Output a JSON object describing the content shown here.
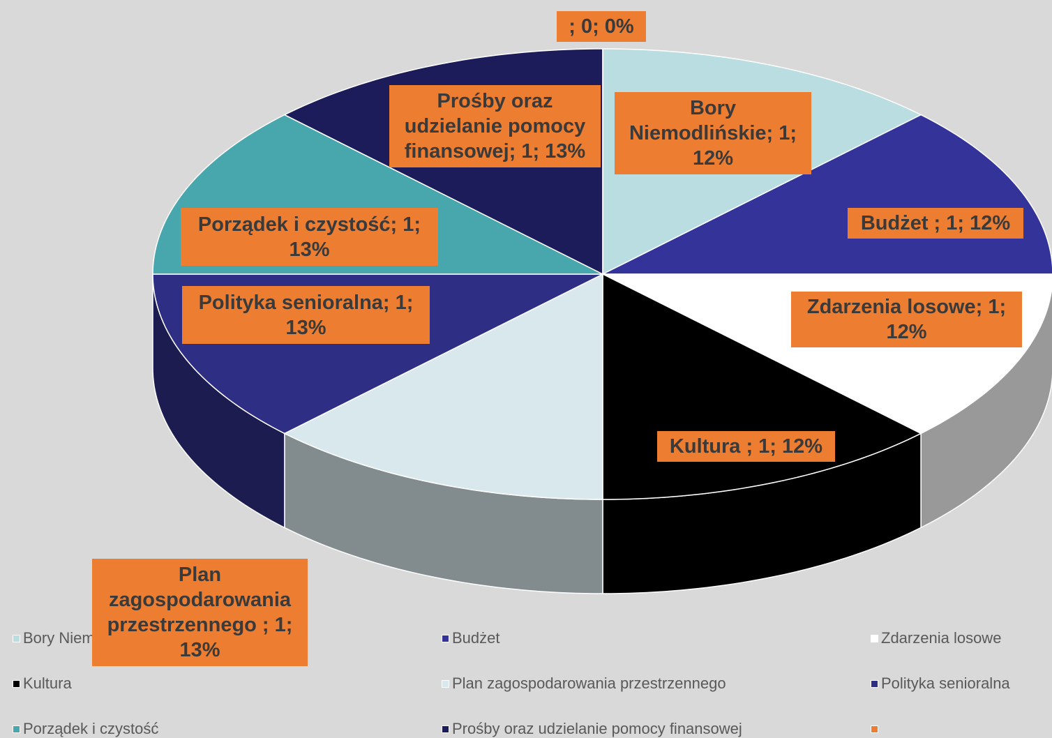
{
  "chart_data": {
    "type": "pie",
    "3d": true,
    "legend": "bottom",
    "categories": [
      "Bory Niemodlińskie",
      "Budżet",
      "Zdarzenia losowe",
      "Kultura",
      "Plan zagospodarowania przestrzennego",
      "Polityka senioralna",
      "Porządek i czystość",
      "Prośby oraz udzielanie pomocy finansowej",
      null
    ],
    "values": [
      1,
      1,
      1,
      1,
      1,
      1,
      1,
      1,
      0
    ],
    "value_labels": [
      "Bory Niemodlińskie; 1; 12%",
      "Budżet ; 1; 12%",
      "Zdarzenia losowe; 1; 12%",
      "Kultura ; 1; 12%",
      "Plan zagospodarowania przestrzennego ; 1; 13%",
      "Polityka senioralna; 1; 13%",
      "Porządek i czystość; 1; 13%",
      "Prośby oraz udzielanie pomocy finansowej; 1; 13%",
      "; 0; 0%"
    ],
    "colors": [
      "#b9dde0",
      "#333399",
      "#ffffff",
      "#000000",
      "#d8e8ec",
      "#2e2e85",
      "#48a6ad",
      "#1c1c5a",
      "#ed7d31"
    ]
  }
}
